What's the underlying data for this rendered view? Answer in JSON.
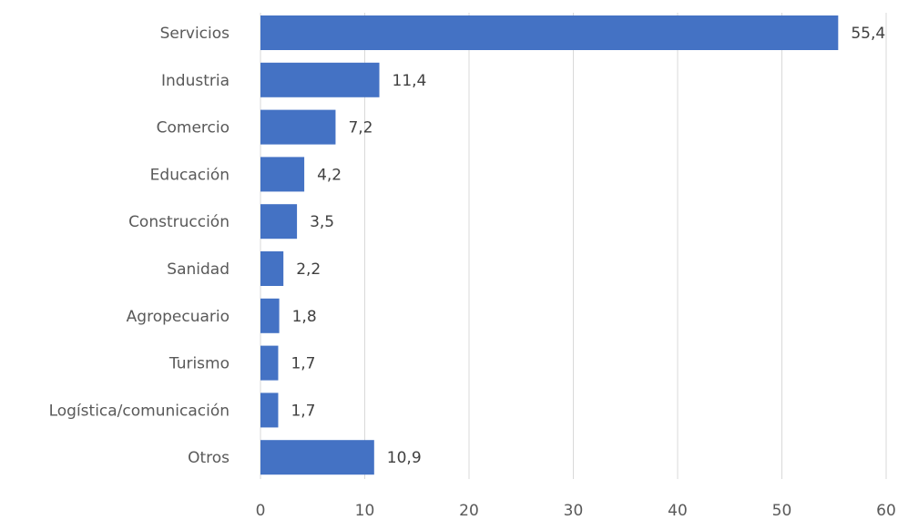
{
  "chart_data": {
    "type": "bar",
    "orientation": "horizontal",
    "categories": [
      "Servicios",
      "Industria",
      "Comercio",
      "Educación",
      "Construcción",
      "Sanidad",
      "Agropecuario",
      "Turismo",
      "Logística/comunicación",
      "Otros"
    ],
    "values": [
      55.4,
      11.4,
      7.2,
      4.2,
      3.5,
      2.2,
      1.8,
      1.7,
      1.7,
      10.9
    ],
    "value_labels": [
      "55,4",
      "11,4",
      "7,2",
      "4,2",
      "3,5",
      "2,2",
      "1,8",
      "1,7",
      "1,7",
      "10,9"
    ],
    "xlim": [
      0,
      60
    ],
    "x_ticks": [
      0,
      10,
      20,
      30,
      40,
      50,
      60
    ],
    "title": "",
    "xlabel": "",
    "ylabel": "",
    "grid": true,
    "legend": "none",
    "colors": {
      "bar": "#4472C4",
      "grid": "#D9D9D9",
      "axis_text": "#595959",
      "data_label": "#404040"
    }
  }
}
